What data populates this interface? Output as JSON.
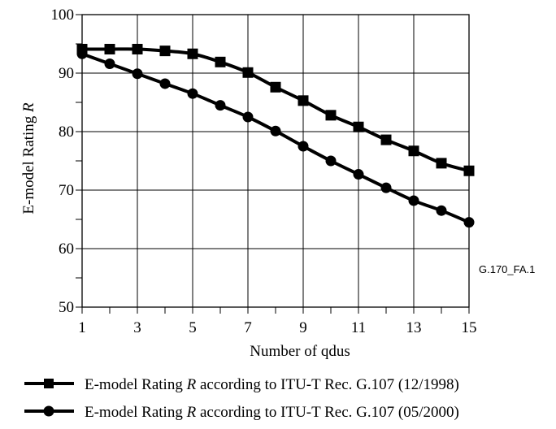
{
  "figure_code": "G.170_FA.1",
  "chart_data": {
    "type": "line",
    "xlabel": "Number of qdus",
    "ylabel": {
      "prefix": "E-model Rating ",
      "variable": "R"
    },
    "xlim": [
      1,
      15
    ],
    "ylim": [
      50,
      100
    ],
    "x_ticks": [
      "1",
      "3",
      "5",
      "7",
      "9",
      "11",
      "13",
      "15"
    ],
    "y_ticks": [
      "50",
      "60",
      "70",
      "80",
      "90",
      "100"
    ],
    "grid": true,
    "legend_position": "bottom",
    "x": [
      1,
      2,
      3,
      4,
      5,
      6,
      7,
      8,
      9,
      10,
      11,
      12,
      13,
      14,
      15
    ],
    "series": [
      {
        "marker": "square",
        "legend": {
          "prefix": "E-model Rating ",
          "variable": "R",
          "suffix": " according to ITU-T Rec. G.107 (12/1998)"
        },
        "values": [
          94.1,
          94.1,
          94.1,
          93.8,
          93.3,
          91.9,
          90.1,
          87.6,
          85.3,
          82.8,
          80.8,
          78.6,
          76.7,
          74.6,
          73.3
        ]
      },
      {
        "marker": "circle",
        "legend": {
          "prefix": "E-model Rating ",
          "variable": "R",
          "suffix": " according to ITU-T Rec. G.107 (05/2000)"
        },
        "values": [
          93.3,
          91.6,
          89.9,
          88.2,
          86.5,
          84.5,
          82.5,
          80.1,
          77.5,
          75.0,
          72.7,
          70.4,
          68.2,
          66.5,
          64.5
        ]
      }
    ]
  }
}
